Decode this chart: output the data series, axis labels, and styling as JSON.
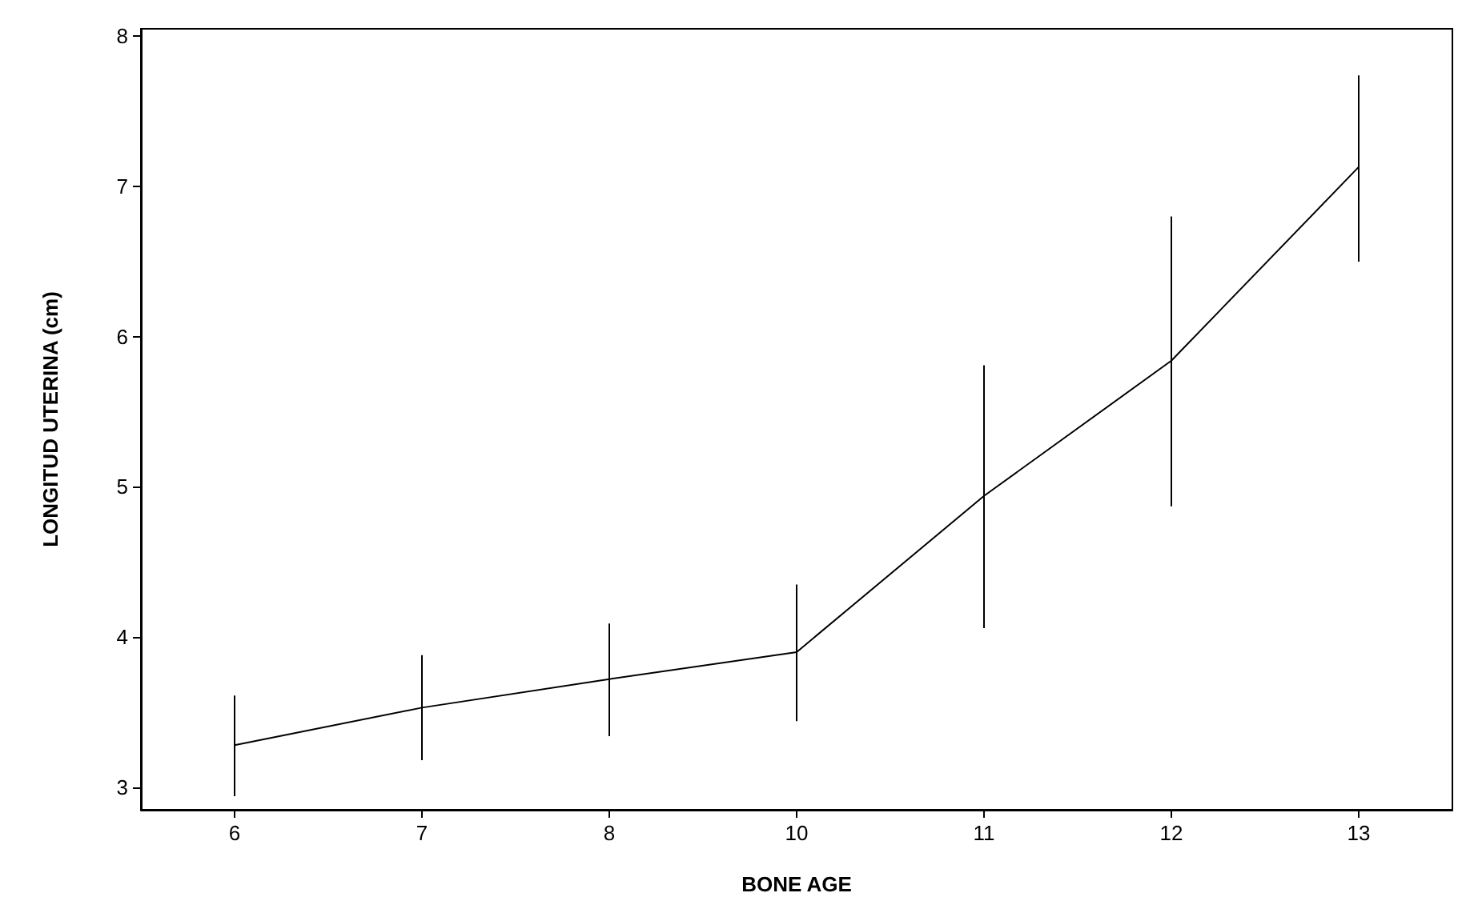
{
  "chart_data": {
    "type": "line",
    "xlabel": "BONE AGE",
    "ylabel": "LONGITUD UTERINA (cm)",
    "categories": [
      "6",
      "7",
      "8",
      "10",
      "11",
      "12",
      "13"
    ],
    "values": [
      3.28,
      3.53,
      3.72,
      3.9,
      4.94,
      5.84,
      7.13
    ],
    "errors": [
      [
        2.94,
        3.61
      ],
      [
        3.18,
        3.88
      ],
      [
        3.34,
        4.09
      ],
      [
        3.44,
        4.35
      ],
      [
        4.06,
        5.81
      ],
      [
        4.87,
        6.8
      ],
      [
        6.5,
        7.74
      ]
    ],
    "color": "#000000",
    "ylim": [
      2.85,
      8.05
    ],
    "yticks": [
      3,
      4,
      5,
      6,
      7,
      8
    ],
    "grid": false,
    "marker": "none",
    "line_style": "solid"
  }
}
